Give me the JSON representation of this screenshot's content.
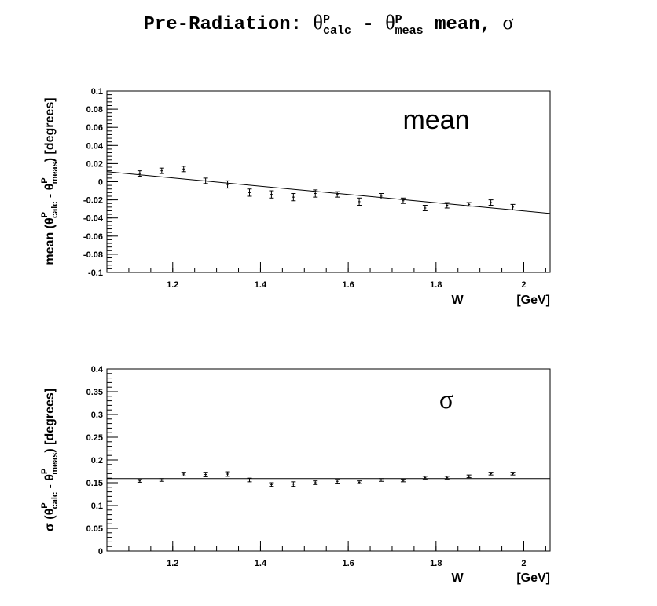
{
  "title": {
    "prefix": "Pre-Radiation: ",
    "theta": "θ",
    "sup": "P",
    "sub_calc": "calc",
    "minus": " - ",
    "sub_meas": "meas",
    "suffix": " mean, ",
    "sigma": "σ"
  },
  "chart_data": [
    {
      "type": "scatter",
      "panel_label": "mean",
      "xlabel": "W",
      "xunit": "[GeV]",
      "ylabel": "mean (θ",
      "ylabel_sup": "P",
      "ylabel_sub1": "calc",
      "ylabel_mid": " - θ",
      "ylabel_sub2": "meas",
      "ylabel_end": ")   [degrees]",
      "xlim": [
        1.05,
        2.06
      ],
      "ylim": [
        -0.1,
        0.1
      ],
      "xticks": [
        "1.2",
        "1.4",
        "1.6",
        "1.8",
        "2"
      ],
      "yticks": [
        "0.1",
        "0.08",
        "0.06",
        "0.04",
        "0.02",
        "0",
        "-0.02",
        "-0.04",
        "-0.06",
        "-0.08",
        "-0.1"
      ],
      "ytick_values": [
        0.1,
        0.08,
        0.06,
        0.04,
        0.02,
        0,
        -0.02,
        -0.04,
        -0.06,
        -0.08,
        -0.1
      ],
      "xtick_values": [
        1.2,
        1.4,
        1.6,
        1.8,
        2.0
      ],
      "x": [
        1.125,
        1.175,
        1.225,
        1.275,
        1.325,
        1.375,
        1.425,
        1.475,
        1.525,
        1.575,
        1.625,
        1.675,
        1.725,
        1.775,
        1.825,
        1.875,
        1.925,
        1.975
      ],
      "y": [
        0.009,
        0.012,
        0.014,
        0.001,
        -0.003,
        -0.012,
        -0.014,
        -0.017,
        -0.013,
        -0.014,
        -0.022,
        -0.016,
        -0.021,
        -0.029,
        -0.026,
        -0.025,
        -0.023,
        -0.028
      ],
      "yerr": [
        0.003,
        0.003,
        0.003,
        0.003,
        0.004,
        0.004,
        0.004,
        0.004,
        0.004,
        0.003,
        0.004,
        0.003,
        0.003,
        0.003,
        0.003,
        0.002,
        0.003,
        0.003
      ],
      "fit_line": {
        "x": [
          1.05,
          2.06
        ],
        "y": [
          0.011,
          -0.035
        ]
      }
    },
    {
      "type": "scatter",
      "panel_label": "σ",
      "xlabel": "W",
      "xunit": "[GeV]",
      "ylabel": "σ (θ",
      "ylabel_sup": "P",
      "ylabel_sub1": "calc",
      "ylabel_mid": " - θ",
      "ylabel_sub2": "meas",
      "ylabel_end": ")   [degrees]",
      "xlim": [
        1.05,
        2.06
      ],
      "ylim": [
        0,
        0.4
      ],
      "xticks": [
        "1.2",
        "1.4",
        "1.6",
        "1.8",
        "2"
      ],
      "yticks": [
        "0.4",
        "0.35",
        "0.3",
        "0.25",
        "0.2",
        "0.15",
        "0.1",
        "0.05",
        "0"
      ],
      "ytick_values": [
        0.4,
        0.35,
        0.3,
        0.25,
        0.2,
        0.15,
        0.1,
        0.05,
        0
      ],
      "xtick_values": [
        1.2,
        1.4,
        1.6,
        1.8,
        2.0
      ],
      "x": [
        1.125,
        1.175,
        1.225,
        1.275,
        1.325,
        1.375,
        1.425,
        1.475,
        1.525,
        1.575,
        1.625,
        1.675,
        1.725,
        1.775,
        1.825,
        1.875,
        1.925,
        1.975
      ],
      "y": [
        0.154,
        0.156,
        0.169,
        0.168,
        0.169,
        0.156,
        0.146,
        0.147,
        0.15,
        0.153,
        0.151,
        0.156,
        0.155,
        0.161,
        0.161,
        0.164,
        0.17,
        0.17
      ],
      "yerr": [
        0.003,
        0.003,
        0.004,
        0.005,
        0.005,
        0.004,
        0.004,
        0.005,
        0.004,
        0.004,
        0.003,
        0.003,
        0.003,
        0.003,
        0.003,
        0.003,
        0.003,
        0.003
      ],
      "fit_line": {
        "x": [
          1.05,
          2.06
        ],
        "y": [
          0.159,
          0.159
        ]
      }
    }
  ]
}
